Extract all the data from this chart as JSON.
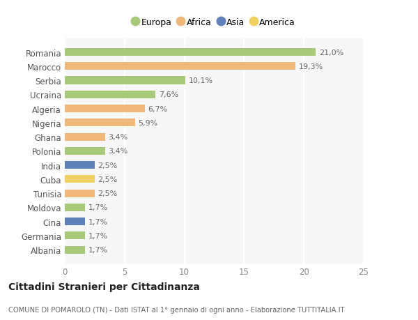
{
  "countries": [
    "Romania",
    "Marocco",
    "Serbia",
    "Ucraina",
    "Algeria",
    "Nigeria",
    "Ghana",
    "Polonia",
    "India",
    "Cuba",
    "Tunisia",
    "Moldova",
    "Cina",
    "Germania",
    "Albania"
  ],
  "values": [
    21.0,
    19.3,
    10.1,
    7.6,
    6.7,
    5.9,
    3.4,
    3.4,
    2.5,
    2.5,
    2.5,
    1.7,
    1.7,
    1.7,
    1.7
  ],
  "labels": [
    "21,0%",
    "19,3%",
    "10,1%",
    "7,6%",
    "6,7%",
    "5,9%",
    "3,4%",
    "3,4%",
    "2,5%",
    "2,5%",
    "2,5%",
    "1,7%",
    "1,7%",
    "1,7%",
    "1,7%"
  ],
  "continents": [
    "Europa",
    "Africa",
    "Europa",
    "Europa",
    "Africa",
    "Africa",
    "Africa",
    "Europa",
    "Asia",
    "America",
    "Africa",
    "Europa",
    "Asia",
    "Europa",
    "Europa"
  ],
  "colors": {
    "Europa": "#a8c87a",
    "Africa": "#f0b87a",
    "Asia": "#6080b8",
    "America": "#f0d060"
  },
  "legend_order": [
    "Europa",
    "Africa",
    "Asia",
    "America"
  ],
  "title": "Cittadini Stranieri per Cittadinanza",
  "subtitle": "COMUNE DI POMAROLO (TN) - Dati ISTAT al 1° gennaio di ogni anno - Elaborazione TUTTITALIA.IT",
  "xlim": [
    0,
    25
  ],
  "xticks": [
    0,
    5,
    10,
    15,
    20,
    25
  ],
  "background_color": "#ffffff",
  "plot_background": "#f7f7f7",
  "grid_color": "#ffffff"
}
